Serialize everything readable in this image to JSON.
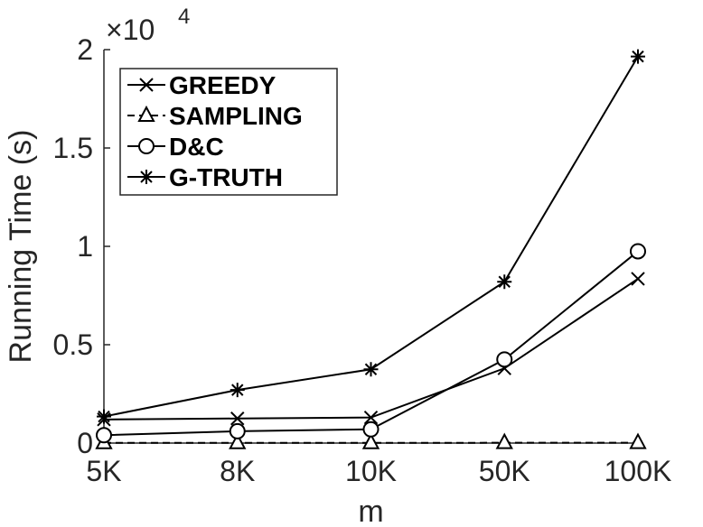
{
  "chart_data": {
    "type": "line",
    "categories": [
      "5K",
      "8K",
      "10K",
      "50K",
      "100K"
    ],
    "xlabel": "m",
    "ylabel": "Running Time (s)",
    "exponent_label": "×10",
    "exponent_power": "4",
    "ylim": [
      0,
      20000
    ],
    "yticks": [
      0,
      5000,
      10000,
      15000,
      20000
    ],
    "ytick_labels": [
      "0",
      "0.5",
      "1",
      "1.5",
      "2"
    ],
    "grid": false,
    "legend_position": "top-left",
    "series": [
      {
        "name": "GREEDY",
        "marker": "x",
        "dash": "solid",
        "values": [
          1200,
          1250,
          1300,
          3800,
          8350
        ]
      },
      {
        "name": "SAMPLING",
        "marker": "triangle",
        "dash": "dashed",
        "values": [
          10,
          10,
          10,
          15,
          20
        ]
      },
      {
        "name": "D&C",
        "marker": "circle",
        "dash": "solid",
        "values": [
          400,
          600,
          700,
          4250,
          9750
        ]
      },
      {
        "name": "G-TRUTH",
        "marker": "star",
        "dash": "solid",
        "values": [
          1350,
          2700,
          3750,
          8200,
          19650
        ]
      }
    ]
  }
}
